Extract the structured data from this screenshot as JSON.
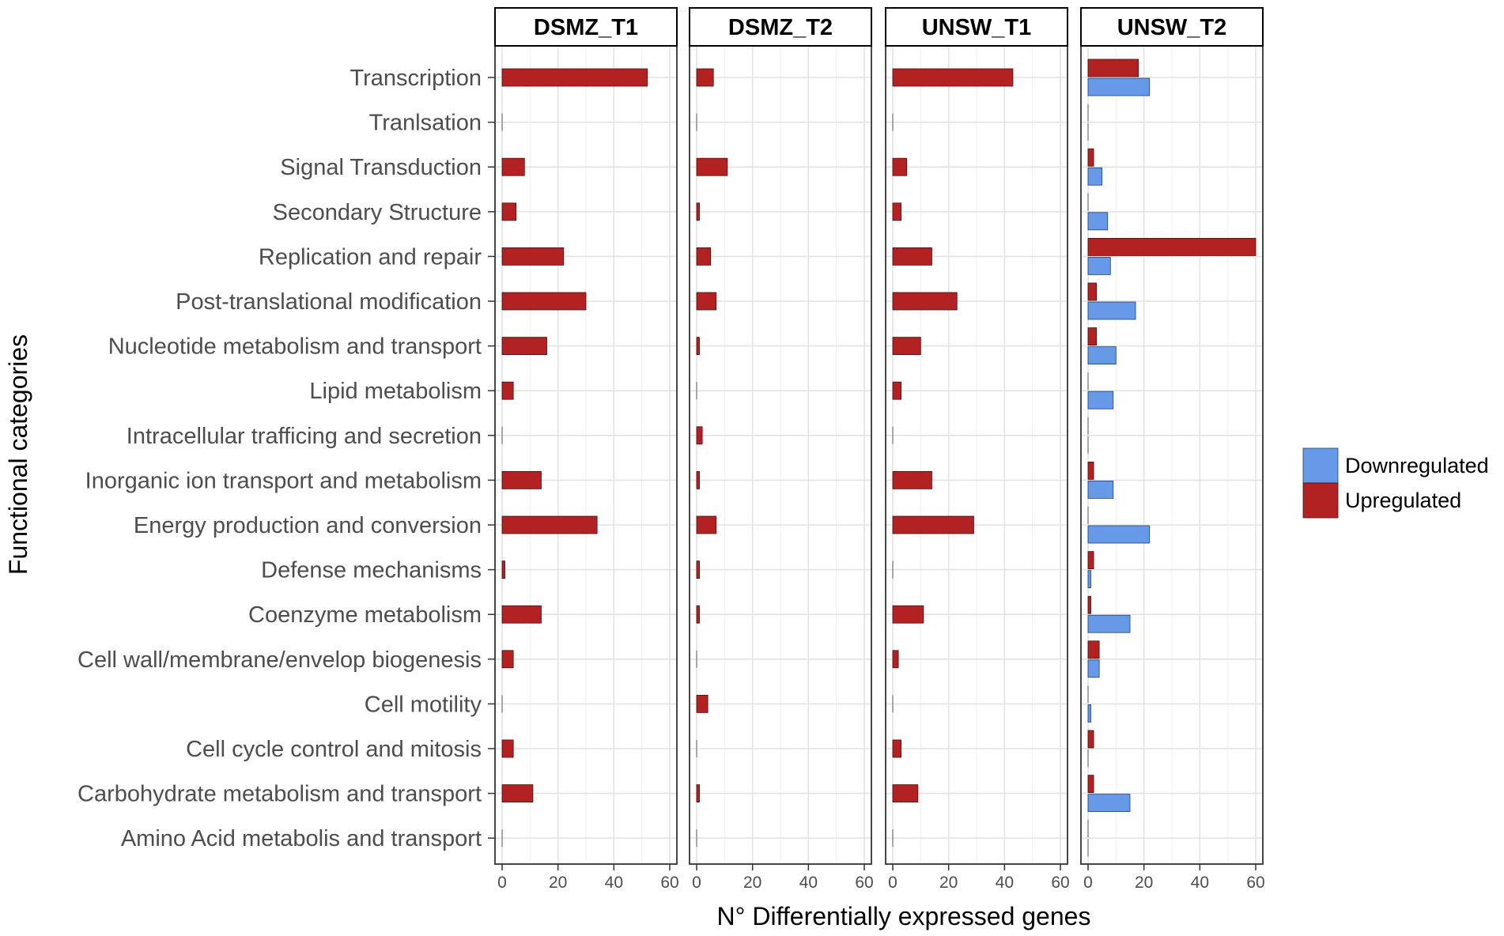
{
  "chart_data": {
    "type": "bar",
    "orientation": "horizontal",
    "xlabel": "N° Differentially expressed genes",
    "ylabel": "Functional categories",
    "xlim": [
      0,
      60
    ],
    "xticks": [
      0,
      20,
      40,
      60
    ],
    "categories": [
      "Transcription",
      "Tranlsation",
      "Signal Transduction",
      "Secondary Structure",
      "Replication and repair",
      "Post-translational modification",
      "Nucleotide metabolism and transport",
      "Lipid metabolism",
      "Intracellular trafficing and secretion",
      "Inorganic ion transport and metabolism",
      "Energy production and conversion",
      "Defense mechanisms",
      "Coenzyme metabolism",
      "Cell wall/membrane/envelop biogenesis",
      "Cell motility",
      "Cell cycle control and mitosis",
      "Carbohydrate metabolism and transport",
      "Amino Acid metabolis and transport"
    ],
    "legend": [
      {
        "name": "Downregulated",
        "color": "#6699e8"
      },
      {
        "name": "Upregulated",
        "color": "#b22222"
      }
    ],
    "panels": [
      {
        "name": "DSMZ_T1",
        "series": [
          {
            "name": "Upregulated",
            "values": [
              52,
              0,
              8,
              5,
              22,
              30,
              16,
              4,
              0,
              14,
              34,
              1,
              14,
              4,
              0,
              4,
              11,
              0
            ]
          },
          {
            "name": "Downregulated",
            "values": [
              0,
              0,
              0,
              0,
              0,
              0,
              0,
              0,
              0,
              0,
              0,
              0,
              0,
              0,
              0,
              0,
              0,
              0
            ]
          }
        ]
      },
      {
        "name": "DSMZ_T2",
        "series": [
          {
            "name": "Upregulated",
            "values": [
              6,
              0,
              11,
              1,
              5,
              7,
              1,
              0,
              2,
              1,
              7,
              1,
              1,
              0,
              4,
              0,
              1,
              0
            ]
          },
          {
            "name": "Downregulated",
            "values": [
              0,
              0,
              0,
              0,
              0,
              0,
              0,
              0,
              0,
              0,
              0,
              0,
              0,
              0,
              0,
              0,
              0,
              0
            ]
          }
        ]
      },
      {
        "name": "UNSW_T1",
        "series": [
          {
            "name": "Upregulated",
            "values": [
              43,
              0,
              5,
              3,
              14,
              23,
              10,
              3,
              0,
              14,
              29,
              0,
              11,
              2,
              0,
              3,
              9,
              0
            ]
          },
          {
            "name": "Downregulated",
            "values": [
              0,
              0,
              0,
              0,
              0,
              0,
              0,
              0,
              0,
              0,
              0,
              0,
              0,
              0,
              0,
              0,
              0,
              0
            ]
          }
        ]
      },
      {
        "name": "UNSW_T2",
        "series": [
          {
            "name": "Upregulated",
            "values": [
              18,
              0,
              2,
              0,
              60,
              3,
              3,
              0,
              0,
              2,
              0,
              2,
              1,
              4,
              0,
              2,
              2,
              0
            ]
          },
          {
            "name": "Downregulated",
            "values": [
              22,
              0,
              5,
              7,
              8,
              17,
              10,
              9,
              0,
              9,
              22,
              1,
              15,
              4,
              1,
              0,
              15,
              0
            ]
          }
        ]
      }
    ]
  }
}
